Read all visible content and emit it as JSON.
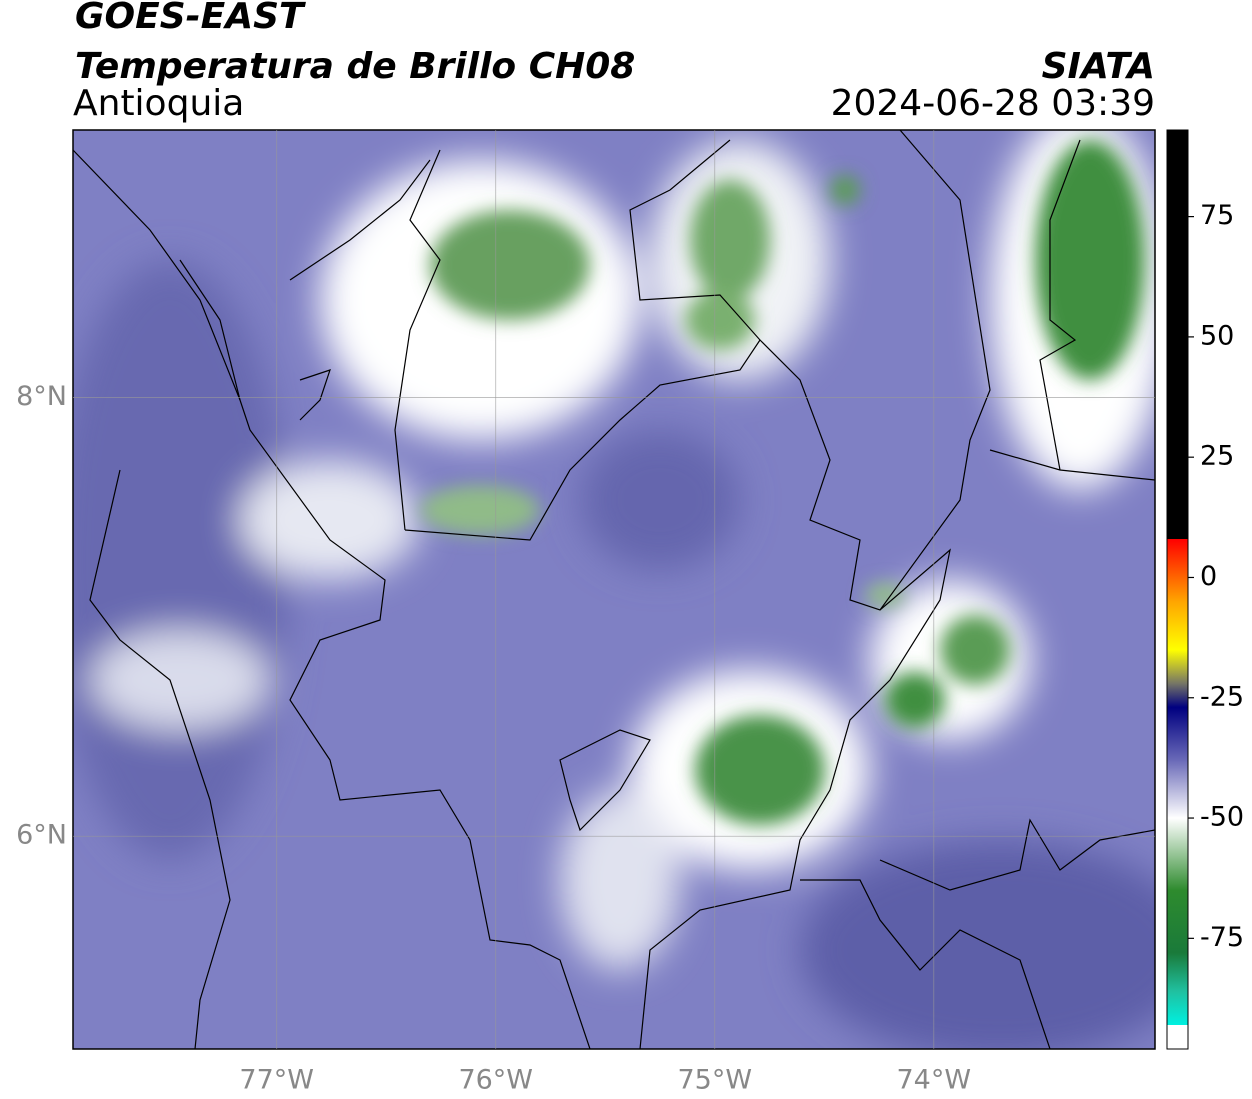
{
  "header": {
    "title": "GOES-EAST",
    "subtitle": "Temperatura de Brillo CH08",
    "region": "Antioquia",
    "source": "SIATA",
    "datetime": "2024-06-28 03:39"
  },
  "map": {
    "xlim": [
      -77.93,
      -72.99
    ],
    "ylim": [
      5.03,
      9.22
    ],
    "xticks": [
      {
        "value": -77,
        "label": "77°W"
      },
      {
        "value": -76,
        "label": "76°W"
      },
      {
        "value": -75,
        "label": "75°W"
      },
      {
        "value": -74,
        "label": "74°W"
      }
    ],
    "yticks": [
      {
        "value": 8,
        "label": "8°N"
      },
      {
        "value": 6,
        "label": "6°N"
      }
    ],
    "grid": true
  },
  "colorbar": {
    "lim": [
      -98,
      93
    ],
    "ticks": [
      75,
      50,
      25,
      0,
      -25,
      -50,
      -75
    ],
    "stops": [
      {
        "value": 93,
        "color": "#000000"
      },
      {
        "value": 8,
        "color": "#000000"
      },
      {
        "value": 8,
        "color": "#ff0000"
      },
      {
        "value": -5,
        "color": "#ffa500"
      },
      {
        "value": -15,
        "color": "#ffff00"
      },
      {
        "value": -22,
        "color": "#777766"
      },
      {
        "value": -27,
        "color": "#000080"
      },
      {
        "value": -38,
        "color": "#6a6ab8"
      },
      {
        "value": -50,
        "color": "#ffffff"
      },
      {
        "value": -65,
        "color": "#2e8b2e"
      },
      {
        "value": -78,
        "color": "#1a7a3a"
      },
      {
        "value": -86,
        "color": "#20c0a0"
      },
      {
        "value": -93,
        "color": "#00f0e0"
      },
      {
        "value": -93,
        "color": "#ffffff"
      },
      {
        "value": -98,
        "color": "#ffffff"
      }
    ]
  }
}
